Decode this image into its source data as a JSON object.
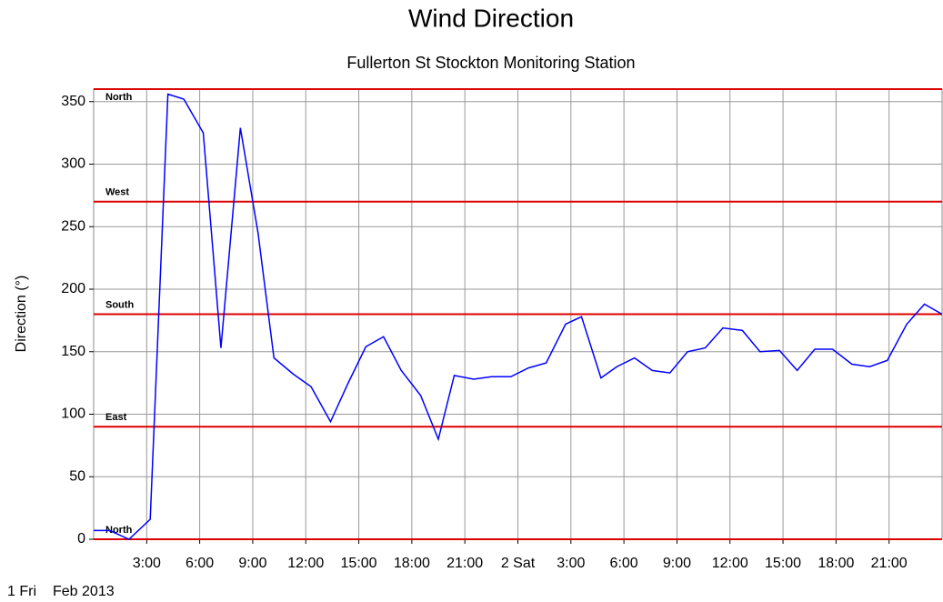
{
  "chart_data": {
    "type": "line",
    "title": "Wind Direction",
    "subtitle": "Fullerton St Stockton Monitoring Station",
    "y_label": "Direction (°)",
    "x_start_label": "1 Fri",
    "x_period_label": "Feb 2013",
    "x": [
      0,
      0.9,
      2,
      3.2,
      4.2,
      5.1,
      6.2,
      7.2,
      8.3,
      9.3,
      10.2,
      11.3,
      12.3,
      13.4,
      14.4,
      15.4,
      16.4,
      17.4,
      18.5,
      19.5,
      20.4,
      21.5,
      22.5,
      23.6,
      24.6,
      25.6,
      26.7,
      27.6,
      28.7,
      29.6,
      30.6,
      31.6,
      32.6,
      33.6,
      34.6,
      35.6,
      36.7,
      37.7,
      38.8,
      39.8,
      40.8,
      41.8,
      42.9,
      43.9,
      44.9,
      46,
      47,
      48
    ],
    "series": [
      {
        "name": "Direction",
        "color": "#0000ff",
        "values": [
          7,
          7,
          0,
          16,
          356,
          352,
          325,
          153,
          329,
          245,
          145,
          132,
          122,
          94,
          125,
          154,
          162,
          135,
          115,
          80,
          131,
          128,
          130,
          130,
          137,
          141,
          172,
          178,
          129,
          138,
          145,
          135,
          133,
          150,
          153,
          169,
          167,
          150,
          151,
          135,
          152,
          152,
          140,
          138,
          143,
          172,
          188,
          180
        ]
      }
    ],
    "xlim": [
      0,
      48
    ],
    "xticks": [
      {
        "value": 3,
        "label": "3:00"
      },
      {
        "value": 6,
        "label": "6:00"
      },
      {
        "value": 9,
        "label": "9:00"
      },
      {
        "value": 12,
        "label": "12:00"
      },
      {
        "value": 15,
        "label": "15:00"
      },
      {
        "value": 18,
        "label": "18:00"
      },
      {
        "value": 21,
        "label": "21:00"
      },
      {
        "value": 24,
        "label": "2 Sat"
      },
      {
        "value": 27,
        "label": "3:00"
      },
      {
        "value": 30,
        "label": "6:00"
      },
      {
        "value": 33,
        "label": "9:00"
      },
      {
        "value": 36,
        "label": "12:00"
      },
      {
        "value": 39,
        "label": "15:00"
      },
      {
        "value": 42,
        "label": "18:00"
      },
      {
        "value": 45,
        "label": "21:00"
      }
    ],
    "ylim": [
      0,
      360
    ],
    "yticks": [
      0,
      50,
      100,
      150,
      200,
      250,
      300,
      350
    ],
    "grid": true,
    "reference_lines": [
      {
        "value": 360,
        "label": "North"
      },
      {
        "value": 270,
        "label": "West"
      },
      {
        "value": 180,
        "label": "South"
      },
      {
        "value": 90,
        "label": "East"
      },
      {
        "value": 0,
        "label": "North"
      }
    ],
    "reference_color": "#dd0000"
  }
}
